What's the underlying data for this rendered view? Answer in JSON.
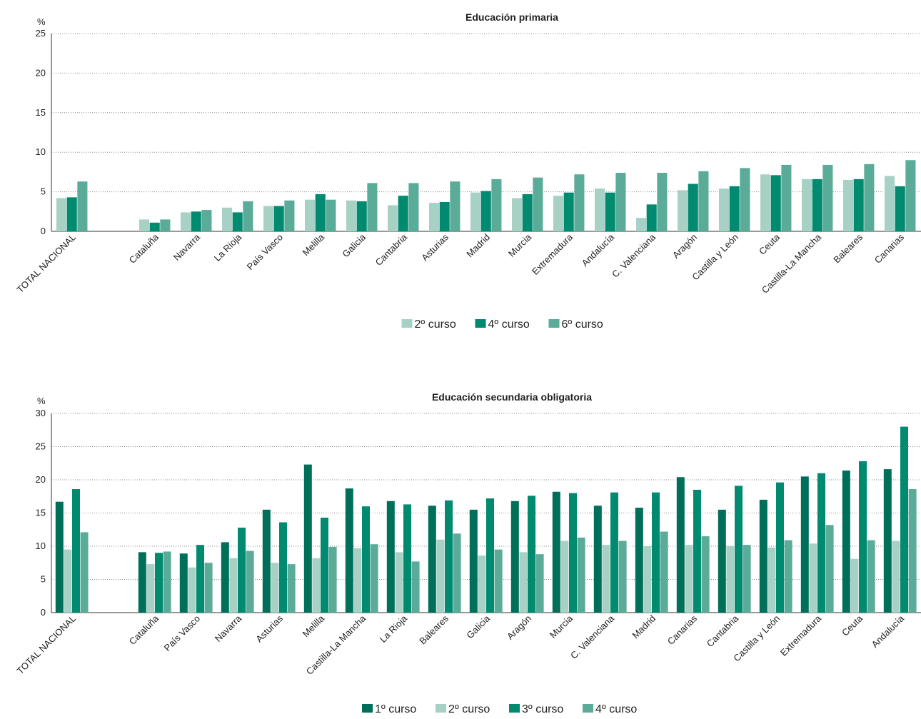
{
  "chart_data": [
    {
      "type": "bar",
      "title": "Educación primaria",
      "ylabel": "%",
      "ylim": [
        0,
        25
      ],
      "yticks": [
        0,
        5,
        10,
        15,
        20,
        25
      ],
      "grid": true,
      "legend": "bottom",
      "categories": [
        "TOTAL NACIONAL",
        "",
        "Cataluña",
        "Navarra",
        "La Rioja",
        "País Vasco",
        "Melilla",
        "Galicia",
        "Cantabria",
        "Asturias",
        "Madrid",
        "Murcia",
        "Extremadura",
        "Andalucía",
        "C. Valenciana",
        "Aragón",
        "Castilla y León",
        "Ceuta",
        "Castilla-La Mancha",
        "Baleares",
        "Canarias"
      ],
      "series": [
        {
          "name": "2º curso",
          "color": "#a8d1c6",
          "values": [
            4.2,
            null,
            1.5,
            2.4,
            3.0,
            3.2,
            4.0,
            3.9,
            3.3,
            3.6,
            4.9,
            4.2,
            4.5,
            5.4,
            1.7,
            5.2,
            5.4,
            7.2,
            6.6,
            6.5,
            7.0
          ]
        },
        {
          "name": "4º curso",
          "color": "#008a70",
          "values": [
            4.3,
            null,
            1.1,
            2.5,
            2.4,
            3.2,
            4.7,
            3.8,
            4.5,
            3.7,
            5.1,
            4.7,
            4.9,
            4.9,
            3.4,
            6.0,
            5.7,
            7.1,
            6.6,
            6.6,
            5.7
          ]
        },
        {
          "name": "6º curso",
          "color": "#5bab99",
          "values": [
            6.3,
            null,
            1.5,
            2.7,
            3.8,
            3.9,
            4.0,
            6.1,
            6.1,
            6.3,
            6.6,
            6.8,
            7.2,
            7.4,
            7.4,
            7.6,
            8.0,
            8.4,
            8.4,
            8.5,
            9.0
          ]
        }
      ]
    },
    {
      "type": "bar",
      "title": "Educación secundaria obligatoria",
      "ylabel": "%",
      "ylim": [
        0,
        30
      ],
      "yticks": [
        0,
        5,
        10,
        15,
        20,
        25,
        30
      ],
      "grid": true,
      "legend": "bottom",
      "categories": [
        "TOTAL NACIONAL",
        "",
        "Cataluña",
        "País Vasco",
        "Navarra",
        "Asturias",
        "Melilla",
        "Castilla-La Mancha",
        "La Rioja",
        "Baleares",
        "Galicia",
        "Aragón",
        "Murcia",
        "C. Valenciana",
        "Madrid",
        "Canarias",
        "Cantabria",
        "Castilla y León",
        "Extremadura",
        "Ceuta",
        "Andalucía"
      ],
      "series": [
        {
          "name": "1º curso",
          "color": "#006f5a",
          "values": [
            16.7,
            null,
            9.1,
            8.9,
            10.6,
            15.5,
            22.3,
            18.7,
            16.8,
            16.1,
            15.5,
            16.8,
            18.2,
            16.1,
            15.8,
            20.4,
            15.5,
            17.0,
            20.5,
            21.4,
            21.6
          ]
        },
        {
          "name": "2º curso",
          "color": "#a8d1c6",
          "values": [
            9.5,
            null,
            7.3,
            6.8,
            8.2,
            7.5,
            8.2,
            9.7,
            9.1,
            11.0,
            8.6,
            9.1,
            10.8,
            10.2,
            10.0,
            10.2,
            10.0,
            9.8,
            10.4,
            8.1,
            10.8
          ]
        },
        {
          "name": "3º curso",
          "color": "#008a70",
          "values": [
            18.6,
            null,
            9.0,
            10.2,
            12.8,
            13.6,
            14.3,
            16.0,
            16.3,
            16.9,
            17.2,
            17.6,
            18.0,
            18.1,
            18.1,
            18.5,
            19.1,
            19.6,
            21.0,
            22.8,
            28.0
          ]
        },
        {
          "name": "4º curso",
          "color": "#5bab99",
          "values": [
            12.1,
            null,
            9.2,
            7.5,
            9.3,
            7.3,
            9.9,
            10.3,
            7.7,
            11.9,
            9.5,
            8.8,
            11.3,
            10.8,
            12.2,
            11.5,
            10.2,
            10.9,
            13.2,
            10.9,
            18.6
          ]
        }
      ]
    }
  ]
}
